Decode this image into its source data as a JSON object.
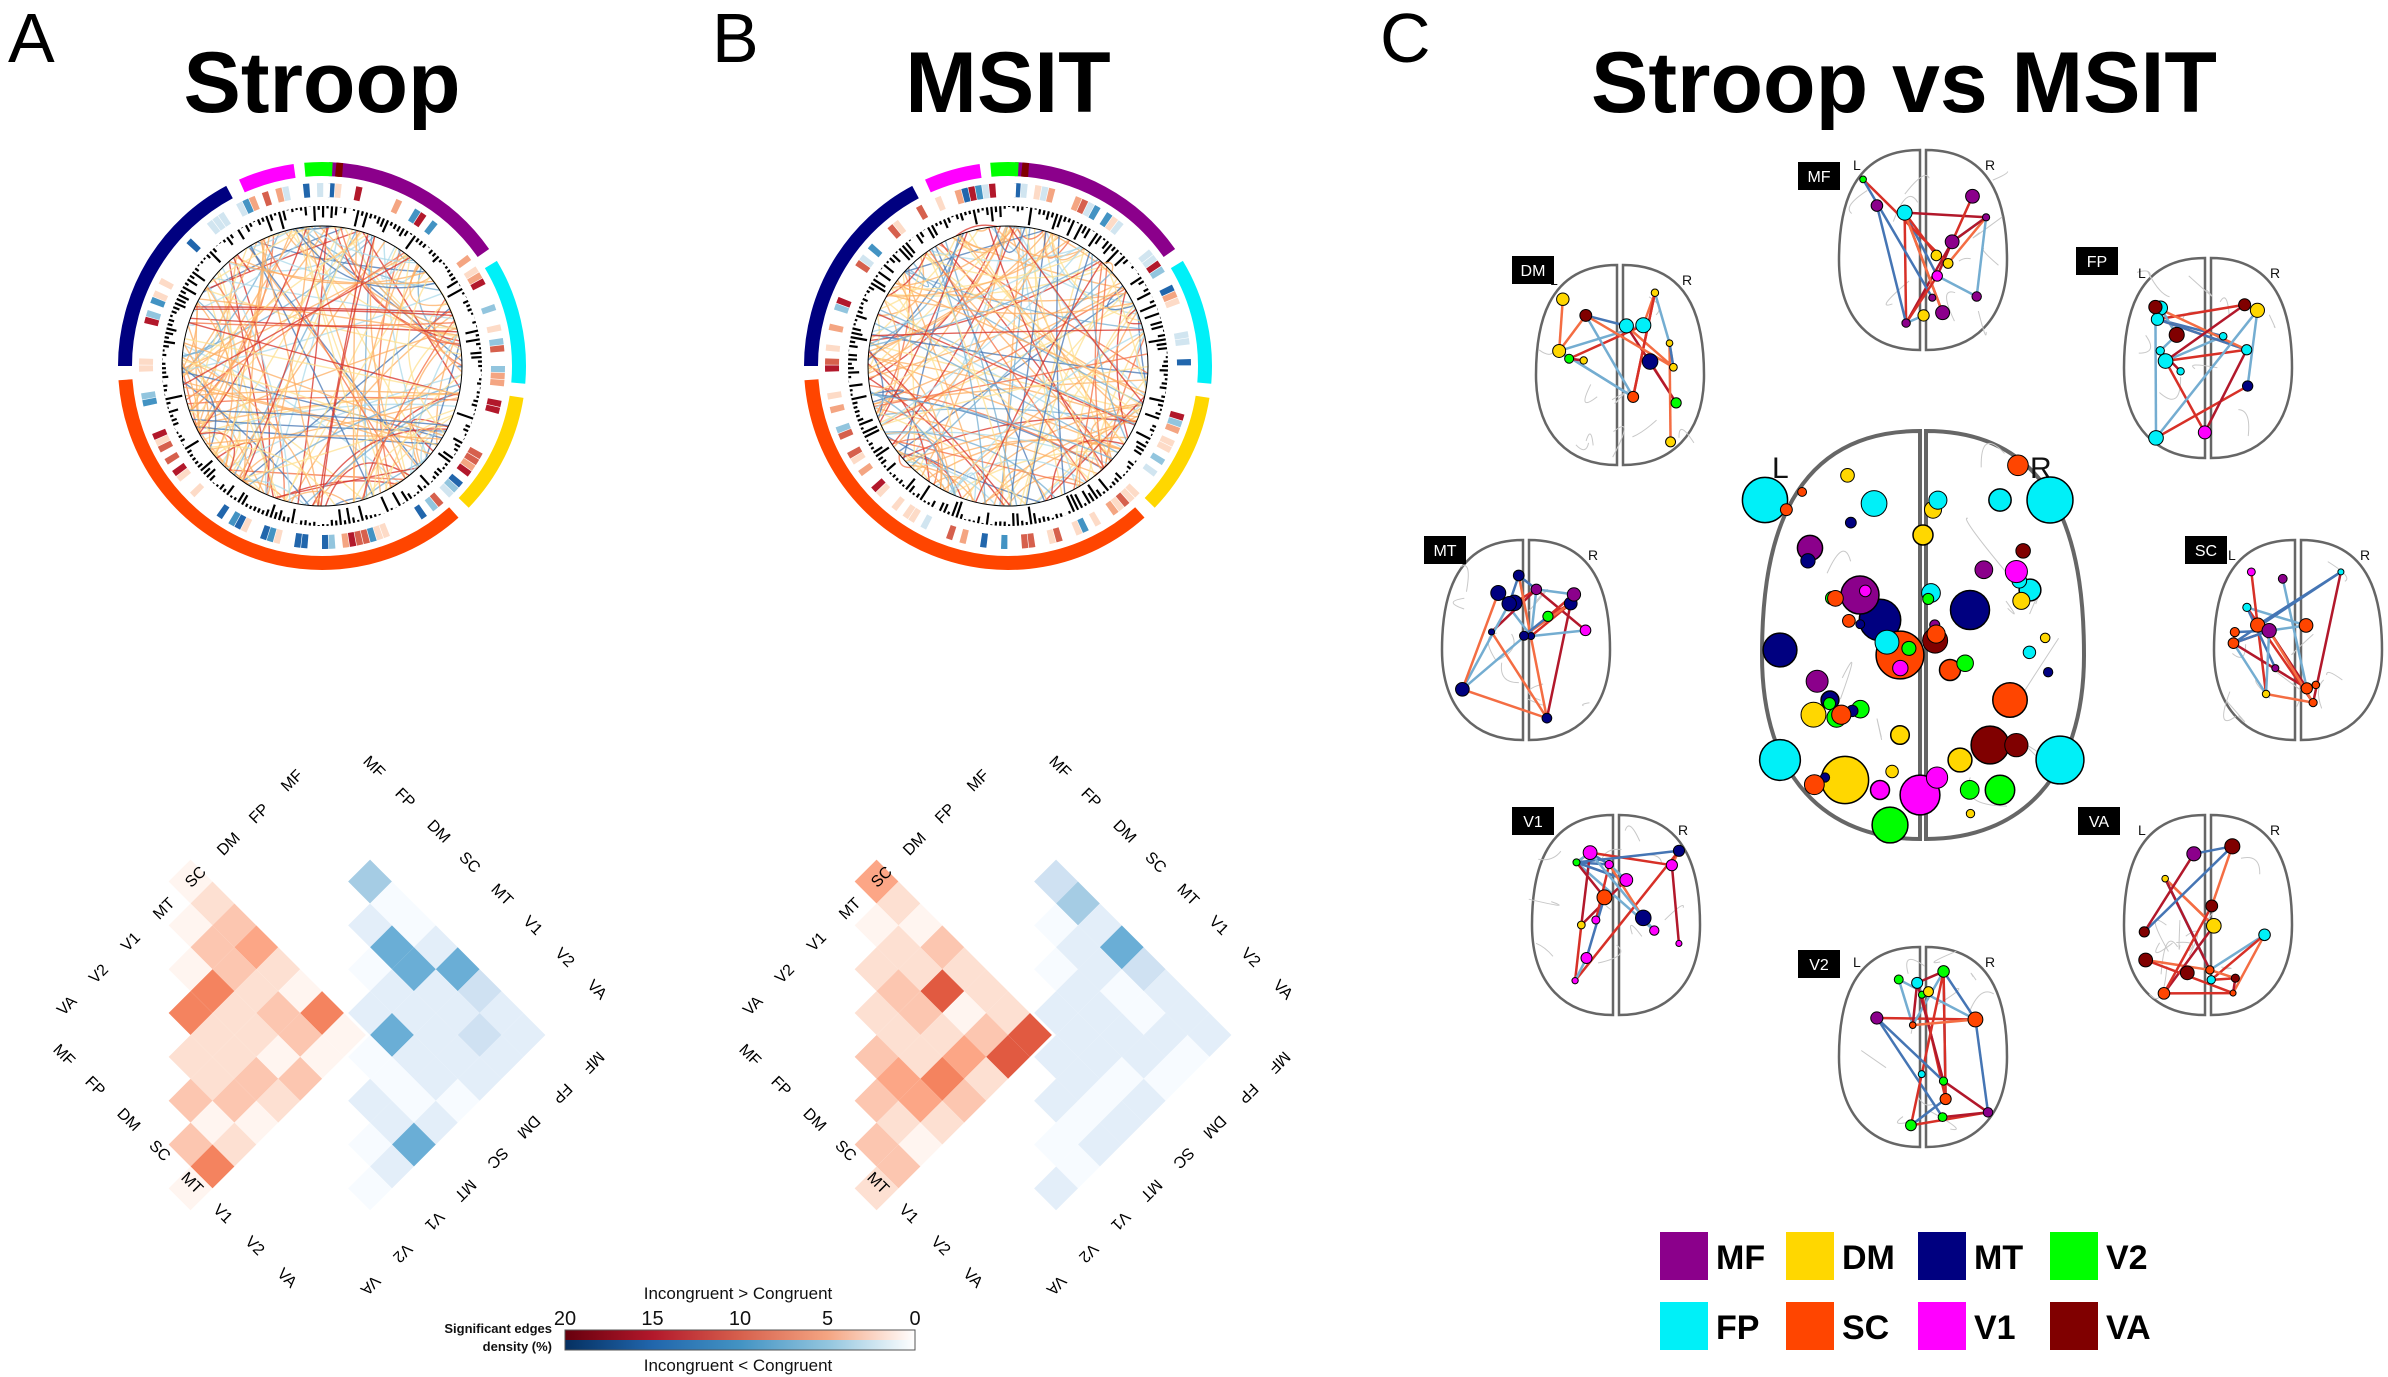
{
  "panels": [
    {
      "letter": "A",
      "title": "Stroop"
    },
    {
      "letter": "B",
      "title": "MSIT"
    },
    {
      "letter": "C",
      "title": "Stroop vs MSIT"
    }
  ],
  "networks": [
    {
      "abbr": "MF",
      "color": "#8b008b"
    },
    {
      "abbr": "FP",
      "color": "#00f0f8"
    },
    {
      "abbr": "DM",
      "color": "#ffd700"
    },
    {
      "abbr": "SC",
      "color": "#ff4500"
    },
    {
      "abbr": "MT",
      "color": "#000080"
    },
    {
      "abbr": "V1",
      "color": "#ff00ff"
    },
    {
      "abbr": "V2",
      "color": "#00ff00"
    },
    {
      "abbr": "VA",
      "color": "#800000"
    }
  ],
  "matrix": {
    "upper_labels": [
      "VA",
      "V2",
      "V1",
      "MT",
      "SC",
      "DM",
      "FP",
      "MF"
    ],
    "right_upper_labels": [
      "MF",
      "FP",
      "DM",
      "SC",
      "MT",
      "V1",
      "V2",
      "VA"
    ],
    "left_lower_labels": [
      "MF",
      "FP",
      "DM",
      "SC",
      "MT",
      "V1",
      "V2",
      "VA"
    ],
    "right_lower_labels": [
      "MF",
      "FP",
      "DM",
      "SC",
      "MT",
      "V1",
      "V2",
      "VA"
    ]
  },
  "colorbar": {
    "title_line1": "Significant edges",
    "title_line2": "density (%)",
    "ticks": [
      "20",
      "15",
      "10",
      "5",
      "0"
    ],
    "top_caption": "Incongruent > Congruent",
    "bottom_caption": "Incongruent < Congruent",
    "warm_colors": [
      "#67000d",
      "#b2182b",
      "#d6604d",
      "#f4a582",
      "#fddbc7",
      "#ffffff"
    ],
    "cool_colors": [
      "#053061",
      "#2166ac",
      "#4393c3",
      "#92c5de",
      "#d1e5f0",
      "#ffffff"
    ]
  },
  "brains": {
    "side_left": "L",
    "side_right": "R",
    "tags": [
      "MF",
      "DM",
      "FP",
      "MT",
      "SC",
      "V1",
      "VA",
      "V2"
    ]
  },
  "legend": {
    "items": [
      {
        "label": "MF",
        "color": "#8b008b"
      },
      {
        "label": "DM",
        "color": "#ffd700"
      },
      {
        "label": "MT",
        "color": "#000080"
      },
      {
        "label": "V2",
        "color": "#00ff00"
      },
      {
        "label": "FP",
        "color": "#00f0f8"
      },
      {
        "label": "SC",
        "color": "#ff4500"
      },
      {
        "label": "V1",
        "color": "#ff00ff"
      },
      {
        "label": "VA",
        "color": "#800000"
      }
    ]
  }
}
